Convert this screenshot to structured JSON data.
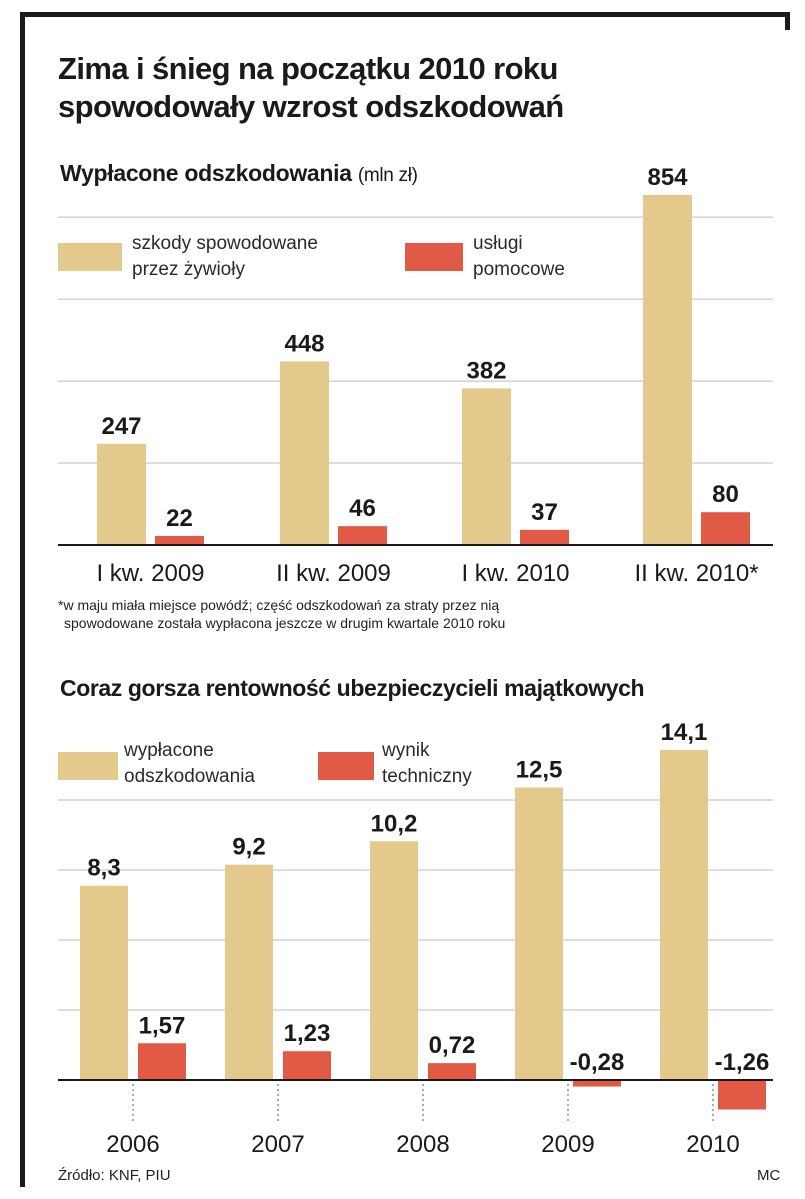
{
  "title": "Zima i śnieg na początku 2010 roku spowodowały wzrost odszkodowań",
  "colors": {
    "tan": "#E3C98B",
    "red": "#E05A45",
    "grid": "#bdbdbd",
    "text": "#1a1a1a"
  },
  "chart1": {
    "subtitle": "Wypłacone odszkodowania",
    "unit": "(mln zł)",
    "legend": [
      {
        "label_line1": "szkody spowodowane",
        "label_line2": "przez żywioły",
        "color": "#E3C98B"
      },
      {
        "label_line1": "usługi",
        "label_line2": "pomocowe",
        "color": "#E05A45"
      }
    ],
    "footnote_line1": "*w maju miała miejsce powódź; część odszkodowań za straty przez nią",
    "footnote_line2": "spowodowane została wypłacona jeszcze w drugim kwartale 2010 roku"
  },
  "chart2": {
    "subtitle": "Coraz gorsza rentowność ubezpieczycieli majątkowych",
    "legend": [
      {
        "label_line1": "wypłacone",
        "label_line2": "odszkodowania",
        "color": "#E3C98B"
      },
      {
        "label_line1": "wynik",
        "label_line2": "techniczny",
        "color": "#E05A45"
      }
    ]
  },
  "source": "Źródło: KNF, PIU",
  "author": "MC",
  "chart_data": [
    {
      "type": "bar",
      "title": "Wypłacone odszkodowania",
      "unit": "(mln zł)",
      "categories": [
        "I kw. 2009",
        "II kw. 2009",
        "I kw. 2010",
        "II kw. 2010*"
      ],
      "series": [
        {
          "name": "szkody spowodowane przez żywioły",
          "values": [
            247,
            448,
            382,
            854
          ],
          "labels": [
            "247",
            "448",
            "382",
            "854"
          ]
        },
        {
          "name": "usługi pomocowe",
          "values": [
            22,
            46,
            37,
            80
          ],
          "labels": [
            "22",
            "46",
            "37",
            "80"
          ]
        }
      ],
      "ylim": [
        0,
        854
      ],
      "grid": true,
      "legend_position": "top"
    },
    {
      "type": "bar",
      "title": "Coraz gorsza rentowność ubezpieczycieli majątkowych",
      "categories": [
        "2006",
        "2007",
        "2008",
        "2009",
        "2010"
      ],
      "series": [
        {
          "name": "wypłacone odszkodowania",
          "values": [
            8.3,
            9.2,
            10.2,
            12.5,
            14.1
          ],
          "labels": [
            "8,3",
            "9,2",
            "10,2",
            "12,5",
            "14,1"
          ]
        },
        {
          "name": "wynik techniczny",
          "values": [
            1.57,
            1.23,
            0.72,
            -0.28,
            -1.26
          ],
          "labels": [
            "1,57",
            "1,23",
            "0,72",
            "-0,28",
            "-1,26"
          ]
        }
      ],
      "ylim": [
        -1.26,
        14.1
      ],
      "grid": true,
      "legend_position": "top"
    }
  ]
}
